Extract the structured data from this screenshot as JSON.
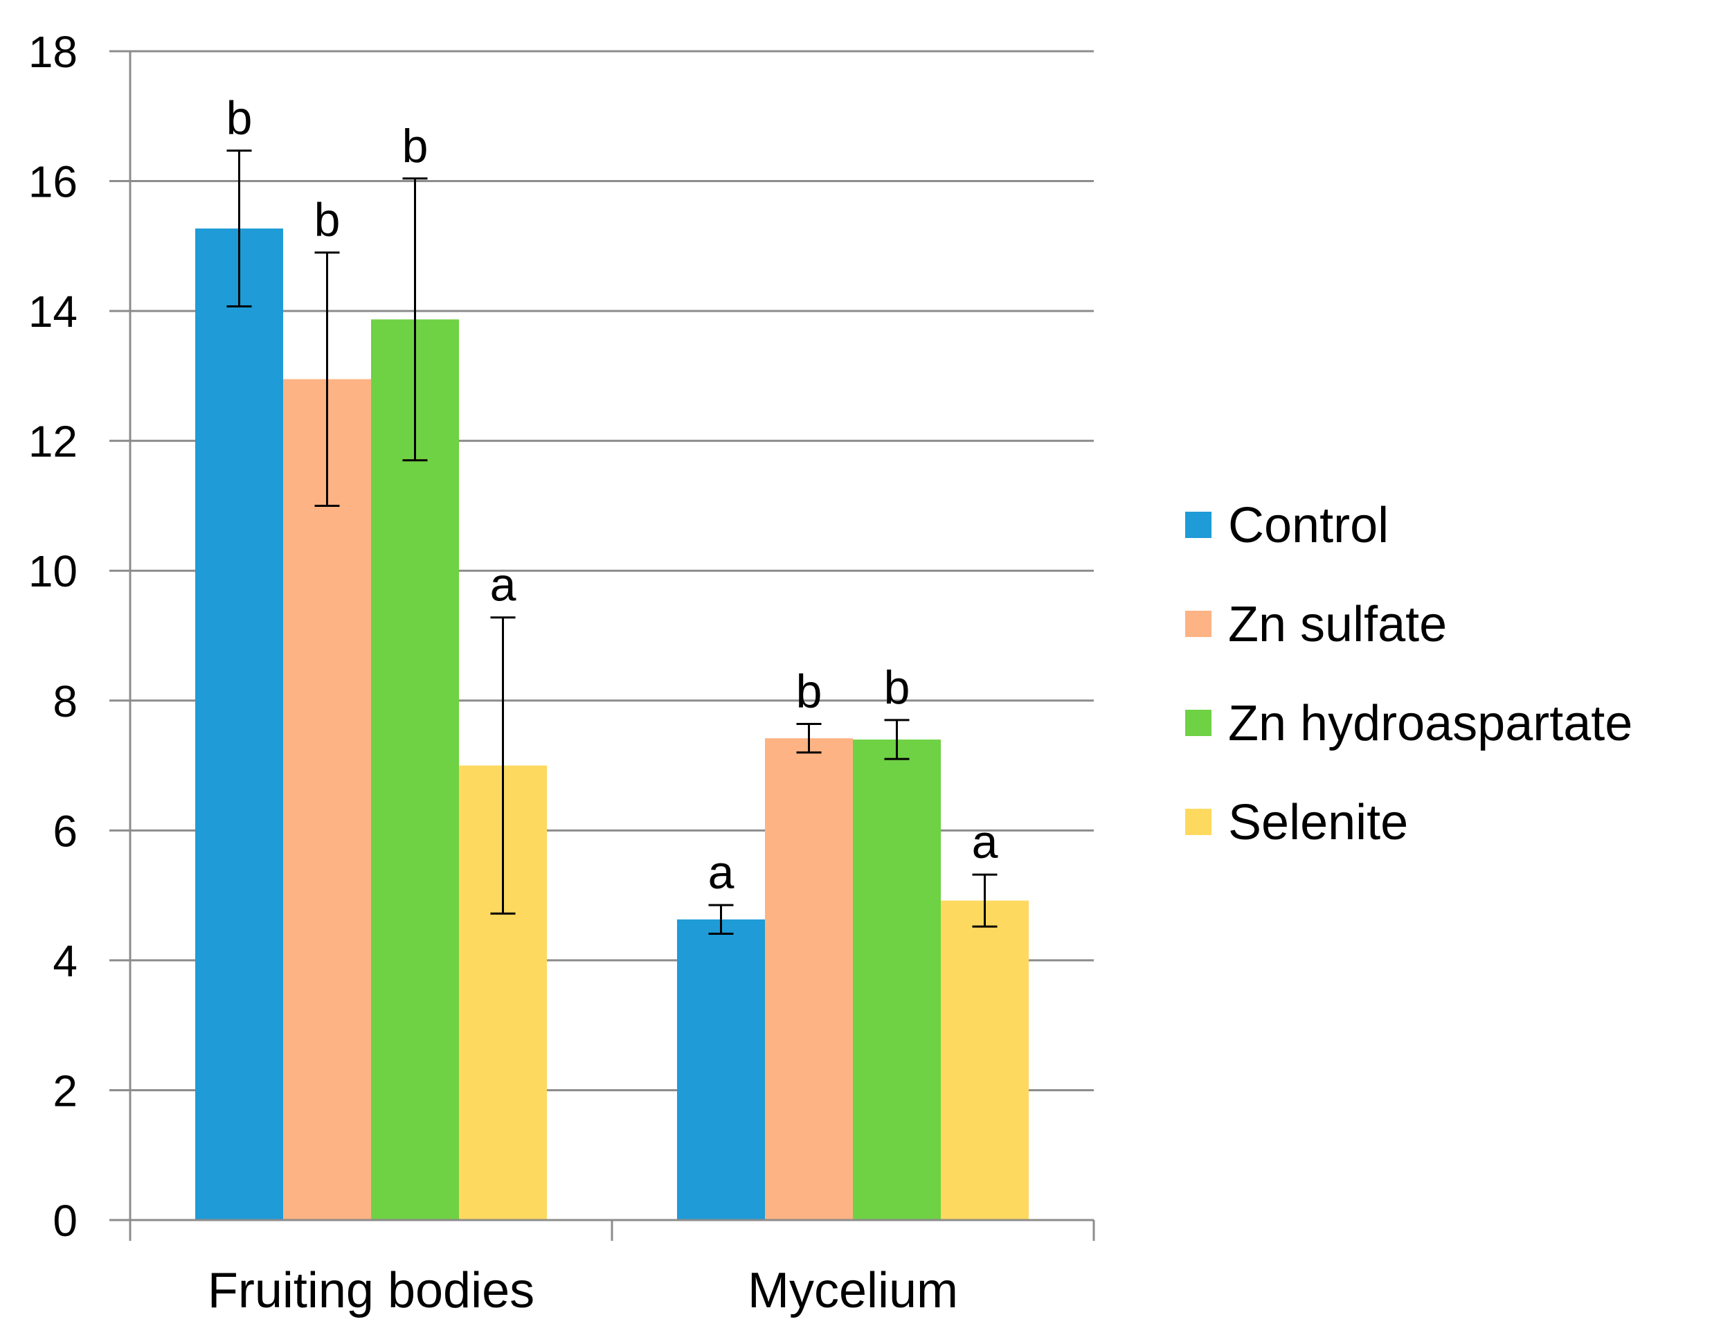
{
  "chart_data": {
    "type": "bar",
    "title": "",
    "xlabel": "",
    "ylabel": "",
    "ylim": [
      0,
      18
    ],
    "yticks": [
      0,
      2,
      4,
      6,
      8,
      10,
      12,
      14,
      16,
      18
    ],
    "grid": true,
    "legend_position": "right",
    "categories": [
      "Fruiting bodies",
      "Mycelium"
    ],
    "series": [
      {
        "name": "Control",
        "color": "#1f9bd7",
        "values": [
          15.27,
          4.63
        ],
        "errors": [
          1.2,
          0.22
        ],
        "significance": [
          "b",
          "a"
        ]
      },
      {
        "name": "Zn sulfate",
        "color": "#fdb383",
        "values": [
          12.95,
          7.42
        ],
        "errors": [
          1.95,
          0.22
        ],
        "significance": [
          "b",
          "b"
        ]
      },
      {
        "name": "Zn  hydroaspartate",
        "color": "#6fd144",
        "values": [
          13.87,
          7.4
        ],
        "errors": [
          2.17,
          0.3
        ],
        "significance": [
          "b",
          "b"
        ]
      },
      {
        "name": "Selenite",
        "color": "#fed95f",
        "values": [
          7.0,
          4.92
        ],
        "errors": [
          2.28,
          0.4
        ],
        "significance": [
          "a",
          "a"
        ]
      }
    ]
  }
}
